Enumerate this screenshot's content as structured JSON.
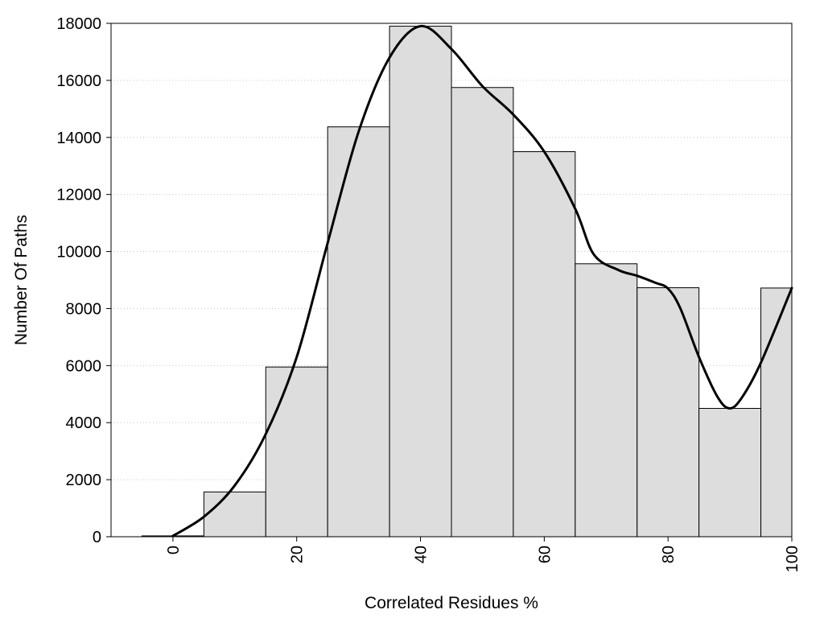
{
  "chart_data": {
    "type": "bar",
    "title": "",
    "xlabel": "Correlated Residues %",
    "ylabel": "Number Of Paths",
    "xlim": [
      -10,
      100
    ],
    "ylim": [
      0,
      18000
    ],
    "x_ticks": [
      0,
      20,
      40,
      60,
      80,
      100
    ],
    "y_ticks": [
      0,
      2000,
      4000,
      6000,
      8000,
      10000,
      12000,
      14000,
      16000,
      18000
    ],
    "grid": "horizontal dotted",
    "bar_color": "#dddddd",
    "bar_edge_color": "#000000",
    "curve_color": "#000000",
    "bins": [
      {
        "center": 0,
        "width": 10,
        "value": 30
      },
      {
        "center": 10,
        "width": 10,
        "value": 1570
      },
      {
        "center": 20,
        "width": 10,
        "value": 5950
      },
      {
        "center": 30,
        "width": 10,
        "value": 14370
      },
      {
        "center": 40,
        "width": 10,
        "value": 17900
      },
      {
        "center": 50,
        "width": 10,
        "value": 15750
      },
      {
        "center": 60,
        "width": 10,
        "value": 13500
      },
      {
        "center": 70,
        "width": 10,
        "value": 9570
      },
      {
        "center": 80,
        "width": 10,
        "value": 8730
      },
      {
        "center": 90,
        "width": 10,
        "value": 4500
      },
      {
        "center": 100,
        "width": 10,
        "value": 8720
      }
    ],
    "smooth_curve": [
      [
        0,
        30
      ],
      [
        5,
        700
      ],
      [
        10,
        1800
      ],
      [
        15,
        3600
      ],
      [
        20,
        6300
      ],
      [
        25,
        10300
      ],
      [
        30,
        14200
      ],
      [
        35,
        16800
      ],
      [
        40,
        17900
      ],
      [
        45,
        17100
      ],
      [
        50,
        15800
      ],
      [
        55,
        14800
      ],
      [
        60,
        13500
      ],
      [
        65,
        11500
      ],
      [
        68,
        9900
      ],
      [
        72,
        9350
      ],
      [
        75,
        9150
      ],
      [
        78,
        8900
      ],
      [
        80,
        8700
      ],
      [
        82,
        8000
      ],
      [
        85,
        6300
      ],
      [
        88,
        4900
      ],
      [
        90,
        4500
      ],
      [
        92,
        4900
      ],
      [
        95,
        6100
      ],
      [
        100,
        8720
      ]
    ]
  }
}
